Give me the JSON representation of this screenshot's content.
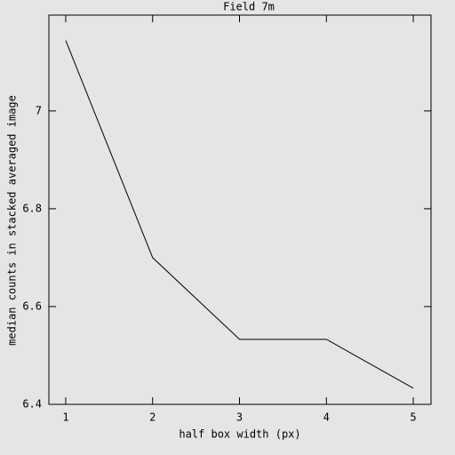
{
  "chart_data": {
    "type": "line",
    "title": "Field 7m",
    "x_label": "half box width (px)",
    "y_label": "median counts in stacked averaged image",
    "x": [
      1,
      2,
      3,
      4,
      5
    ],
    "series": [
      {
        "color": "#000000",
        "values": [
          7.144,
          6.7,
          6.533,
          6.533,
          6.433
        ]
      }
    ],
    "xlim": [
      0.806,
      5.204
    ],
    "ylim": [
      6.4,
      7.196
    ],
    "xticks": [
      1,
      2,
      3,
      4,
      5
    ],
    "yticks": [
      6.4,
      6.6,
      6.8,
      7
    ]
  }
}
